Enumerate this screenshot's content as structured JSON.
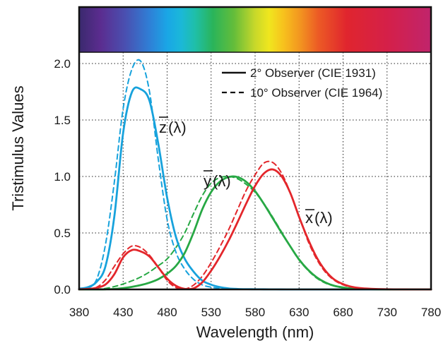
{
  "chart_data": {
    "type": "line",
    "xlabel": "Wavelength (nm)",
    "ylabel": "Tristimulus Values",
    "xlim": [
      380,
      780
    ],
    "ylim": [
      0,
      2.5
    ],
    "x_ticks": [
      "380",
      "430",
      "480",
      "530",
      "580",
      "630",
      "680",
      "730",
      "780"
    ],
    "y_ticks": [
      "0.0",
      "0.5",
      "1.0",
      "1.5",
      "2.0"
    ],
    "grid": true,
    "legend_position": "top-right",
    "legend": [
      {
        "label": "2° Observer (CIE 1931)",
        "style": "solid"
      },
      {
        "label": "10° Observer (CIE 1964)",
        "style": "dashed"
      }
    ],
    "curve_labels": [
      {
        "base": "z",
        "suffix": "(λ)"
      },
      {
        "base": "y",
        "suffix": "(λ)"
      },
      {
        "base": "x",
        "suffix": "(λ)"
      }
    ],
    "colors": {
      "x": "#e3262b",
      "y": "#27a844",
      "z": "#17a2dc"
    },
    "spectrum_band": true,
    "x": [
      380,
      390,
      400,
      410,
      420,
      430,
      440,
      450,
      460,
      470,
      480,
      490,
      500,
      510,
      520,
      530,
      540,
      550,
      560,
      570,
      580,
      590,
      600,
      610,
      620,
      630,
      640,
      650,
      660,
      670,
      680,
      690,
      700,
      710,
      720,
      730,
      740,
      750,
      760,
      770,
      780
    ],
    "series": [
      {
        "style": "solid",
        "color_key": "z",
        "values": [
          0.0065,
          0.0201,
          0.0679,
          0.2074,
          0.6456,
          1.3856,
          1.7471,
          1.7721,
          1.6692,
          1.2876,
          0.813,
          0.4652,
          0.272,
          0.1582,
          0.0782,
          0.0422,
          0.0203,
          0.0087,
          0.0039,
          0.0021,
          0.0017,
          0.0011,
          0.0008,
          0.0003,
          0.0002,
          0,
          0,
          0,
          0,
          0,
          0,
          0,
          0,
          0,
          0,
          0,
          0,
          0,
          0,
          0,
          0
        ]
      },
      {
        "style": "solid",
        "color_key": "y",
        "values": [
          0.0,
          0.0001,
          0.0004,
          0.0012,
          0.004,
          0.0116,
          0.023,
          0.038,
          0.06,
          0.091,
          0.139,
          0.208,
          0.323,
          0.503,
          0.71,
          0.862,
          0.954,
          0.995,
          0.995,
          0.952,
          0.87,
          0.757,
          0.631,
          0.503,
          0.381,
          0.265,
          0.175,
          0.107,
          0.061,
          0.032,
          0.017,
          0.0082,
          0.0041,
          0.0021,
          0.001,
          0.0005,
          0.0003,
          0.0001,
          0.0001,
          0.0,
          0.0
        ]
      },
      {
        "style": "solid",
        "color_key": "x",
        "values": [
          0.0014,
          0.0042,
          0.0143,
          0.0435,
          0.1344,
          0.2839,
          0.3483,
          0.3362,
          0.2908,
          0.1954,
          0.0956,
          0.032,
          0.0049,
          0.0093,
          0.0633,
          0.1655,
          0.2904,
          0.4334,
          0.5945,
          0.7621,
          0.9163,
          1.0263,
          1.0622,
          1.0026,
          0.8544,
          0.6424,
          0.4479,
          0.2835,
          0.1649,
          0.0874,
          0.0468,
          0.0227,
          0.0114,
          0.0058,
          0.0029,
          0.0014,
          0.0007,
          0.0003,
          0.0002,
          0.0001,
          0.0
        ]
      },
      {
        "style": "dashed",
        "color_key": "z",
        "values": [
          0.0006,
          0.0105,
          0.091,
          0.4,
          0.95,
          1.6,
          1.95,
          2.02,
          1.75,
          1.15,
          0.62,
          0.33,
          0.18,
          0.09,
          0.04,
          0.02,
          0.009,
          0.004,
          0.0015,
          0.0005,
          0,
          0,
          0,
          0,
          0,
          0,
          0,
          0,
          0,
          0,
          0,
          0,
          0,
          0,
          0,
          0,
          0,
          0,
          0,
          0,
          0
        ]
      },
      {
        "style": "dashed",
        "color_key": "y",
        "values": [
          0.0,
          0.0003,
          0.002,
          0.009,
          0.025,
          0.048,
          0.076,
          0.11,
          0.155,
          0.21,
          0.27,
          0.37,
          0.5,
          0.67,
          0.83,
          0.94,
          0.99,
          1.0,
          0.98,
          0.93,
          0.86,
          0.76,
          0.64,
          0.51,
          0.38,
          0.26,
          0.17,
          0.1,
          0.056,
          0.03,
          0.015,
          0.007,
          0.0034,
          0.0016,
          0.0008,
          0.0004,
          0.0002,
          0.0001,
          0.0,
          0.0,
          0.0
        ]
      },
      {
        "style": "dashed",
        "color_key": "x",
        "values": [
          0.0002,
          0.0024,
          0.0191,
          0.0847,
          0.2045,
          0.3147,
          0.3837,
          0.3707,
          0.3023,
          0.1956,
          0.0805,
          0.0162,
          0.0038,
          0.0375,
          0.1177,
          0.2365,
          0.3768,
          0.5298,
          0.7052,
          0.8787,
          1.0142,
          1.1185,
          1.124,
          1.0305,
          0.8563,
          0.6475,
          0.4316,
          0.2683,
          0.1526,
          0.0813,
          0.0409,
          0.0199,
          0.0096,
          0.0046,
          0.0022,
          0.001,
          0.0005,
          0.0002,
          0.0001,
          0.0,
          0.0
        ]
      }
    ]
  }
}
